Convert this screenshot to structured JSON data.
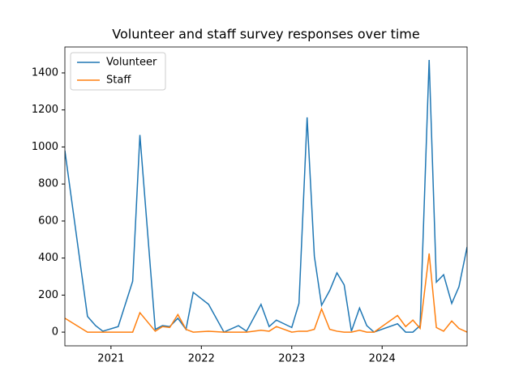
{
  "chart_data": {
    "type": "line",
    "title": "Volunteer and staff survey responses over time",
    "x": [
      2020.49,
      2020.74,
      2020.83,
      2020.91,
      2021.08,
      2021.24,
      2021.32,
      2021.49,
      2021.57,
      2021.65,
      2021.74,
      2021.83,
      2021.91,
      2022.08,
      2022.25,
      2022.41,
      2022.5,
      2022.66,
      2022.75,
      2022.83,
      2023.0,
      2023.08,
      2023.17,
      2023.25,
      2023.33,
      2023.42,
      2023.5,
      2023.58,
      2023.66,
      2023.75,
      2023.83,
      2023.91,
      2024.17,
      2024.26,
      2024.34,
      2024.42,
      2024.52,
      2024.6,
      2024.68,
      2024.77,
      2024.85,
      2024.94
    ],
    "series": [
      {
        "name": "Volunteer",
        "color": "#1f77b4",
        "values": [
          980,
          85,
          35,
          5,
          30,
          275,
          1065,
          15,
          35,
          30,
          75,
          15,
          215,
          150,
          0,
          35,
          5,
          150,
          30,
          65,
          25,
          155,
          1160,
          410,
          145,
          225,
          320,
          255,
          5,
          130,
          35,
          0,
          45,
          0,
          0,
          35,
          1470,
          270,
          310,
          155,
          245,
          460
        ]
      },
      {
        "name": "Staff",
        "color": "#ff7f0e",
        "values": [
          75,
          0,
          0,
          0,
          0,
          0,
          105,
          5,
          30,
          25,
          95,
          15,
          0,
          5,
          0,
          0,
          0,
          10,
          5,
          30,
          0,
          5,
          5,
          15,
          125,
          15,
          5,
          0,
          0,
          10,
          0,
          0,
          90,
          30,
          65,
          20,
          425,
          25,
          5,
          60,
          20,
          0
        ]
      }
    ],
    "xlim": [
      2020.49,
      2024.94
    ],
    "xticks": [
      2021,
      2022,
      2023,
      2024
    ],
    "ylim": [
      -74,
      1540
    ],
    "yticks": [
      0,
      200,
      400,
      600,
      800,
      1000,
      1200,
      1400
    ],
    "legend": "upper left"
  }
}
